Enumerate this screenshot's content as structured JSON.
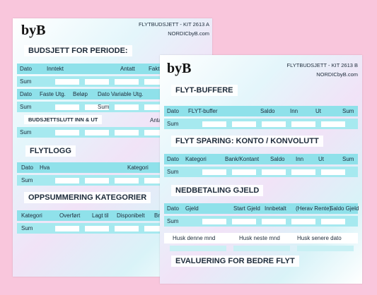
{
  "sheet_a": {
    "logo": "byB",
    "kit": "FLYTBUDSJETT - KIT 2613 A",
    "site": "NORDICbyB.com",
    "titles": [
      "BUDSJETT FOR PERIODE:",
      "BUDSJETTSLUTT INN & UT",
      "FLYTLOGG",
      "OPPSUMMERING KATEGORIER"
    ],
    "rows": [
      [
        "Dato",
        "Inntekt",
        "Antatt",
        "Faktis"
      ],
      [
        "Sum"
      ],
      [
        "Dato",
        "Faste Utg.",
        "Beløp",
        "Dato",
        "Variable Utg."
      ],
      [
        "Sum",
        "Sum"
      ],
      [
        "Antat"
      ],
      [
        "Sum"
      ],
      [
        "Dato",
        "Hva",
        "Kategori"
      ],
      [
        "Sum"
      ],
      [
        "Kategori",
        "Overført",
        "Lagt til",
        "Disponibelt",
        "Bru"
      ],
      [
        "Sum"
      ]
    ]
  },
  "sheet_b": {
    "logo": "byB",
    "kit": "FLYTBUDSJETT - KIT 2613 B",
    "site": "NORDICbyB.com",
    "titles": [
      "FLYT-BUFFERE",
      "FLYT SPARING: KONTO / KONVOLUTT",
      "NEDBETALING GJELD",
      "EVALUERING FOR BEDRE FLYT"
    ],
    "rows": [
      [
        "Dato",
        "FLYT-buffer",
        "Saldo",
        "Inn",
        "Ut",
        "Sum"
      ],
      [
        "Sum"
      ],
      [
        "Dato",
        "Kategori",
        "Bank/Kontant",
        "Saldo",
        "Inn",
        "Ut",
        "Sum"
      ],
      [
        "Sum"
      ],
      [
        "Dato",
        "Gjeld",
        "Start Gjeld",
        "Innbetalt",
        "(Herav Rente)",
        "Saldo Gjeld"
      ],
      [
        "Sum"
      ],
      [
        "Husk denne mnd",
        "Husk neste mnd",
        "Husk senere dato"
      ]
    ]
  }
}
